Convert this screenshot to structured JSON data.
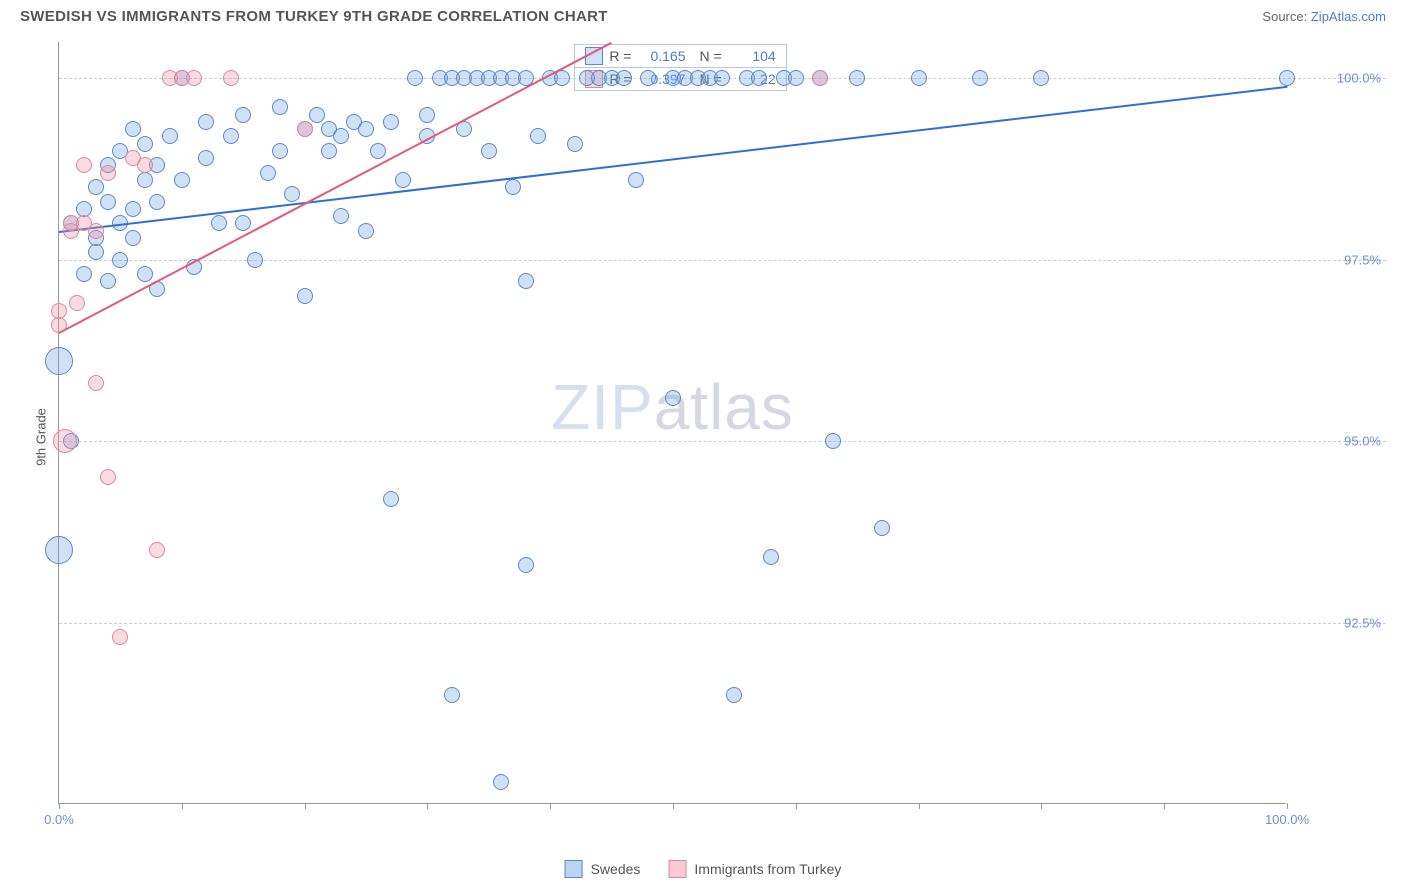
{
  "header": {
    "title": "SWEDISH VS IMMIGRANTS FROM TURKEY 9TH GRADE CORRELATION CHART",
    "source_label": "Source:",
    "source_name": "ZipAtlas.com"
  },
  "ylabel": "9th Grade",
  "watermark_a": "ZIP",
  "watermark_b": "atlas",
  "chart": {
    "type": "scatter",
    "xlim": [
      0,
      100
    ],
    "ylim": [
      90.0,
      100.5
    ],
    "y_ticks": [
      92.5,
      95.0,
      97.5,
      100.0
    ],
    "y_tick_labels": [
      "92.5%",
      "95.0%",
      "97.5%",
      "100.0%"
    ],
    "x_tick_positions": [
      0,
      10,
      20,
      30,
      40,
      50,
      60,
      70,
      80,
      90,
      100
    ],
    "x_axis_left_label": "0.0%",
    "x_axis_right_label": "100.0%",
    "background": "#ffffff",
    "grid_color": "#cccccc",
    "axis_color": "#999999",
    "series": [
      {
        "name": "Swedes",
        "color_fill": "rgba(120,170,230,0.35)",
        "color_stroke": "#5a8ac9",
        "point_class": "pt-blue",
        "r_value": "0.165",
        "n_value": "104",
        "trend": {
          "x1": 0,
          "y1": 97.9,
          "x2": 100,
          "y2": 99.9,
          "color": "#2e6fd6",
          "width": 2
        },
        "points": [
          {
            "x": 0,
            "y": 96.1,
            "r": 14
          },
          {
            "x": 0,
            "y": 93.5,
            "r": 14
          },
          {
            "x": 1,
            "y": 95.0,
            "r": 8
          },
          {
            "x": 1,
            "y": 98.0,
            "r": 8
          },
          {
            "x": 2,
            "y": 97.3,
            "r": 8
          },
          {
            "x": 2,
            "y": 98.2,
            "r": 8
          },
          {
            "x": 3,
            "y": 97.6,
            "r": 8
          },
          {
            "x": 3,
            "y": 98.5,
            "r": 8
          },
          {
            "x": 3,
            "y": 97.8,
            "r": 8
          },
          {
            "x": 4,
            "y": 97.2,
            "r": 8
          },
          {
            "x": 4,
            "y": 98.3,
            "r": 8
          },
          {
            "x": 4,
            "y": 98.8,
            "r": 8
          },
          {
            "x": 5,
            "y": 99.0,
            "r": 8
          },
          {
            "x": 5,
            "y": 97.5,
            "r": 8
          },
          {
            "x": 5,
            "y": 98.0,
            "r": 8
          },
          {
            "x": 6,
            "y": 99.3,
            "r": 8
          },
          {
            "x": 6,
            "y": 98.2,
            "r": 8
          },
          {
            "x": 6,
            "y": 97.8,
            "r": 8
          },
          {
            "x": 7,
            "y": 98.6,
            "r": 8
          },
          {
            "x": 7,
            "y": 97.3,
            "r": 8
          },
          {
            "x": 7,
            "y": 99.1,
            "r": 8
          },
          {
            "x": 8,
            "y": 98.8,
            "r": 8
          },
          {
            "x": 8,
            "y": 97.1,
            "r": 8
          },
          {
            "x": 8,
            "y": 98.3,
            "r": 8
          },
          {
            "x": 9,
            "y": 99.2,
            "r": 8
          },
          {
            "x": 10,
            "y": 98.6,
            "r": 8
          },
          {
            "x": 10,
            "y": 100.0,
            "r": 8
          },
          {
            "x": 11,
            "y": 97.4,
            "r": 8
          },
          {
            "x": 12,
            "y": 98.9,
            "r": 8
          },
          {
            "x": 12,
            "y": 99.4,
            "r": 8
          },
          {
            "x": 13,
            "y": 98.0,
            "r": 8
          },
          {
            "x": 14,
            "y": 99.2,
            "r": 8
          },
          {
            "x": 15,
            "y": 98.0,
            "r": 8
          },
          {
            "x": 15,
            "y": 99.5,
            "r": 8
          },
          {
            "x": 16,
            "y": 97.5,
            "r": 8
          },
          {
            "x": 17,
            "y": 98.7,
            "r": 8
          },
          {
            "x": 18,
            "y": 99.0,
            "r": 8
          },
          {
            "x": 18,
            "y": 99.6,
            "r": 8
          },
          {
            "x": 19,
            "y": 98.4,
            "r": 8
          },
          {
            "x": 20,
            "y": 99.3,
            "r": 8
          },
          {
            "x": 20,
            "y": 97.0,
            "r": 8
          },
          {
            "x": 21,
            "y": 99.5,
            "r": 8
          },
          {
            "x": 22,
            "y": 99.3,
            "r": 8
          },
          {
            "x": 22,
            "y": 99.0,
            "r": 8
          },
          {
            "x": 23,
            "y": 98.1,
            "r": 8
          },
          {
            "x": 23,
            "y": 99.2,
            "r": 8
          },
          {
            "x": 24,
            "y": 99.4,
            "r": 8
          },
          {
            "x": 25,
            "y": 99.3,
            "r": 8
          },
          {
            "x": 25,
            "y": 97.9,
            "r": 8
          },
          {
            "x": 26,
            "y": 99.0,
            "r": 8
          },
          {
            "x": 27,
            "y": 94.2,
            "r": 8
          },
          {
            "x": 27,
            "y": 99.4,
            "r": 8
          },
          {
            "x": 28,
            "y": 98.6,
            "r": 8
          },
          {
            "x": 29,
            "y": 100.0,
            "r": 8
          },
          {
            "x": 30,
            "y": 99.5,
            "r": 8
          },
          {
            "x": 30,
            "y": 99.2,
            "r": 8
          },
          {
            "x": 31,
            "y": 100.0,
            "r": 8
          },
          {
            "x": 32,
            "y": 100.0,
            "r": 8
          },
          {
            "x": 32,
            "y": 91.5,
            "r": 8
          },
          {
            "x": 33,
            "y": 99.3,
            "r": 8
          },
          {
            "x": 33,
            "y": 100.0,
            "r": 8
          },
          {
            "x": 34,
            "y": 100.0,
            "r": 8
          },
          {
            "x": 35,
            "y": 99.0,
            "r": 8
          },
          {
            "x": 35,
            "y": 100.0,
            "r": 8
          },
          {
            "x": 36,
            "y": 100.0,
            "r": 8
          },
          {
            "x": 36,
            "y": 90.3,
            "r": 8
          },
          {
            "x": 37,
            "y": 98.5,
            "r": 8
          },
          {
            "x": 37,
            "y": 100.0,
            "r": 8
          },
          {
            "x": 38,
            "y": 100.0,
            "r": 8
          },
          {
            "x": 38,
            "y": 93.3,
            "r": 8
          },
          {
            "x": 38,
            "y": 97.2,
            "r": 8
          },
          {
            "x": 39,
            "y": 99.2,
            "r": 8
          },
          {
            "x": 40,
            "y": 100.0,
            "r": 8
          },
          {
            "x": 41,
            "y": 100.0,
            "r": 8
          },
          {
            "x": 42,
            "y": 99.1,
            "r": 8
          },
          {
            "x": 43,
            "y": 100.0,
            "r": 8
          },
          {
            "x": 44,
            "y": 100.0,
            "r": 8
          },
          {
            "x": 45,
            "y": 100.0,
            "r": 8
          },
          {
            "x": 46,
            "y": 100.0,
            "r": 8
          },
          {
            "x": 47,
            "y": 98.6,
            "r": 8
          },
          {
            "x": 48,
            "y": 100.0,
            "r": 8
          },
          {
            "x": 50,
            "y": 100.0,
            "r": 8
          },
          {
            "x": 50,
            "y": 95.6,
            "r": 8
          },
          {
            "x": 51,
            "y": 100.0,
            "r": 8
          },
          {
            "x": 52,
            "y": 100.0,
            "r": 8
          },
          {
            "x": 53,
            "y": 100.0,
            "r": 8
          },
          {
            "x": 54,
            "y": 100.0,
            "r": 8
          },
          {
            "x": 55,
            "y": 91.5,
            "r": 8
          },
          {
            "x": 56,
            "y": 100.0,
            "r": 8
          },
          {
            "x": 57,
            "y": 100.0,
            "r": 8
          },
          {
            "x": 58,
            "y": 93.4,
            "r": 8
          },
          {
            "x": 59,
            "y": 100.0,
            "r": 8
          },
          {
            "x": 60,
            "y": 100.0,
            "r": 8
          },
          {
            "x": 62,
            "y": 100.0,
            "r": 8
          },
          {
            "x": 63,
            "y": 95.0,
            "r": 8
          },
          {
            "x": 65,
            "y": 100.0,
            "r": 8
          },
          {
            "x": 67,
            "y": 93.8,
            "r": 8
          },
          {
            "x": 70,
            "y": 100.0,
            "r": 8
          },
          {
            "x": 75,
            "y": 100.0,
            "r": 8
          },
          {
            "x": 80,
            "y": 100.0,
            "r": 8
          },
          {
            "x": 100,
            "y": 100.0,
            "r": 8
          }
        ]
      },
      {
        "name": "Immigrants from Turkey",
        "color_fill": "rgba(240,150,170,0.35)",
        "color_stroke": "#d98aa0",
        "point_class": "pt-pink",
        "r_value": "0.397",
        "n_value": "22",
        "trend": {
          "x1": 0,
          "y1": 96.5,
          "x2": 45,
          "y2": 100.5,
          "color": "#e25a7a",
          "width": 2
        },
        "points": [
          {
            "x": 0,
            "y": 96.8,
            "r": 8
          },
          {
            "x": 0,
            "y": 96.6,
            "r": 8
          },
          {
            "x": 0.5,
            "y": 95.0,
            "r": 12
          },
          {
            "x": 1,
            "y": 98.0,
            "r": 8
          },
          {
            "x": 1,
            "y": 97.9,
            "r": 8
          },
          {
            "x": 1.5,
            "y": 96.9,
            "r": 8
          },
          {
            "x": 2,
            "y": 98.0,
            "r": 8
          },
          {
            "x": 2,
            "y": 98.8,
            "r": 8
          },
          {
            "x": 3,
            "y": 95.8,
            "r": 8
          },
          {
            "x": 3,
            "y": 97.9,
            "r": 8
          },
          {
            "x": 4,
            "y": 94.5,
            "r": 8
          },
          {
            "x": 4,
            "y": 98.7,
            "r": 8
          },
          {
            "x": 5,
            "y": 92.3,
            "r": 8
          },
          {
            "x": 6,
            "y": 98.9,
            "r": 8
          },
          {
            "x": 7,
            "y": 98.8,
            "r": 8
          },
          {
            "x": 8,
            "y": 93.5,
            "r": 8
          },
          {
            "x": 9,
            "y": 100.0,
            "r": 8
          },
          {
            "x": 10,
            "y": 100.0,
            "r": 8
          },
          {
            "x": 11,
            "y": 100.0,
            "r": 8
          },
          {
            "x": 14,
            "y": 100.0,
            "r": 8
          },
          {
            "x": 20,
            "y": 99.3,
            "r": 8
          },
          {
            "x": 62,
            "y": 100.0,
            "r": 8
          }
        ]
      }
    ]
  },
  "legend_bottom": {
    "items": [
      {
        "label": "Swedes",
        "fill": "rgba(120,170,230,0.5)",
        "stroke": "#5a8ac9"
      },
      {
        "label": "Immigrants from Turkey",
        "fill": "rgba(240,150,170,0.5)",
        "stroke": "#d98aa0"
      }
    ]
  },
  "legend_top": {
    "r_prefix": "R =",
    "n_prefix": "N ="
  }
}
